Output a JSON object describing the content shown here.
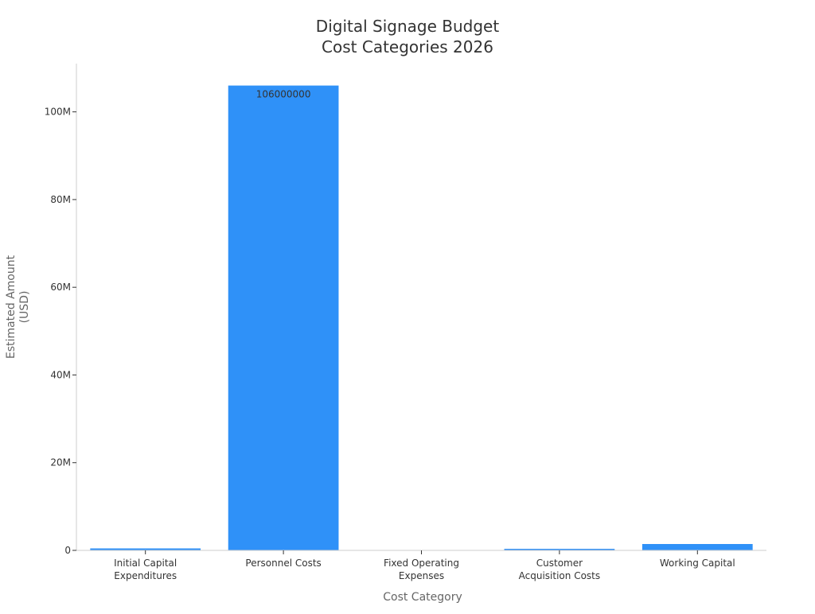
{
  "chart_data": {
    "type": "bar",
    "title": [
      "Digital Signage Budget",
      "Cost Categories 2026"
    ],
    "xlabel": "Cost Category",
    "ylabel": [
      "Estimated Amount",
      "(USD)"
    ],
    "categories": [
      [
        "Initial Capital",
        "Expenditures"
      ],
      [
        "Personnel Costs"
      ],
      [
        "Fixed Operating",
        "Expenses"
      ],
      [
        "Customer",
        "Acquisition Costs"
      ],
      [
        "Working Capital"
      ]
    ],
    "values": [
      450000,
      106000000,
      0,
      350000,
      1450000
    ],
    "data_labels": [
      "",
      "106000000",
      "",
      "",
      ""
    ],
    "ylim": [
      0,
      111000000
    ],
    "yticks": [
      0,
      20000000,
      40000000,
      60000000,
      80000000,
      100000000
    ],
    "ytick_labels": [
      "0",
      "20M",
      "40M",
      "60M",
      "80M",
      "100M"
    ],
    "grid": false,
    "legend": "none",
    "colors": {
      "bar": "#2f91f8",
      "axis": "#cccccc",
      "title": "#333333",
      "axis_title": "#666666"
    }
  }
}
